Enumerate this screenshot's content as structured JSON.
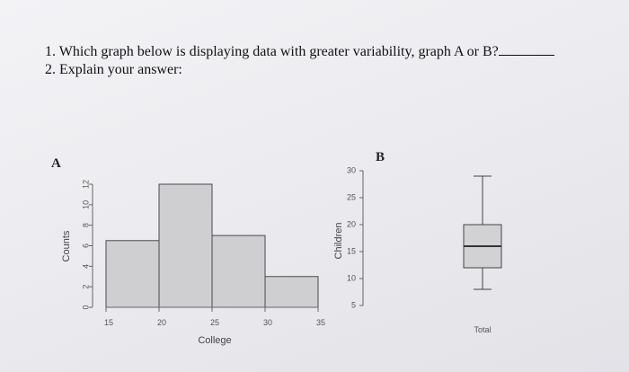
{
  "questions": {
    "q1": "1. Which graph below is displaying data with greater variability, graph A or B?",
    "q2": "2. Explain your answer:"
  },
  "labels": {
    "graph_a": "A",
    "graph_b": "B"
  },
  "chart_data": [
    {
      "type": "bar",
      "bins": [
        [
          15,
          20
        ],
        [
          20,
          25
        ],
        [
          25,
          30
        ],
        [
          30,
          35
        ]
      ],
      "values": [
        6.5,
        12,
        7,
        3
      ],
      "xticks": [
        15,
        20,
        25,
        30,
        35
      ],
      "yticks": [
        0,
        2,
        4,
        6,
        8,
        10,
        12
      ],
      "xlabel": "College",
      "ylabel": "Counts",
      "xlim": [
        15,
        35
      ],
      "ylim": [
        0,
        12
      ],
      "bar_color": "#cfcfd1"
    },
    {
      "type": "boxplot",
      "min": 8,
      "q1": 12,
      "median": 16,
      "q3": 20,
      "max": 29,
      "yticks": [
        5,
        10,
        15,
        20,
        25,
        30
      ],
      "xlabel": "Total",
      "ylabel": "Children",
      "ylim": [
        5,
        30
      ],
      "box_color": "#d2d2d4"
    }
  ]
}
